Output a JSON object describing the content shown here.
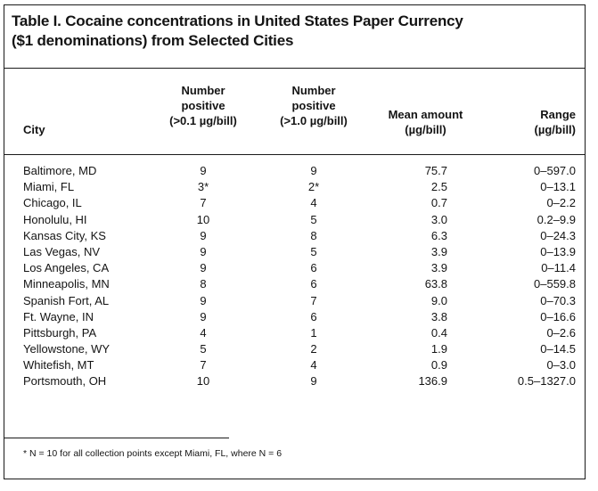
{
  "title": {
    "line1": "Table I. Cocaine concentrations in United States Paper Currency",
    "line2": "($1 denominations) from Selected Cities"
  },
  "headers": {
    "city": "City",
    "number_positive_01": [
      "Number",
      "positive",
      "(>0.1 µg/bill)"
    ],
    "number_positive_10": [
      "Number",
      "positive",
      "(>1.0 µg/bill)"
    ],
    "mean_amount": [
      "Mean amount",
      "(µg/bill)"
    ],
    "range": [
      "Range",
      "(µg/bill)"
    ]
  },
  "rows": [
    {
      "city": "Baltimore, MD",
      "n01": "9",
      "n10": "9",
      "mean": "75.7",
      "range": "0–597.0"
    },
    {
      "city": "Miami, FL",
      "n01": "3*",
      "n10": "2*",
      "mean": "2.5",
      "range": "0–13.1"
    },
    {
      "city": "Chicago, IL",
      "n01": "7",
      "n10": "4",
      "mean": "0.7",
      "range": "0–2.2"
    },
    {
      "city": "Honolulu, HI",
      "n01": "10",
      "n10": "5",
      "mean": "3.0",
      "range": "0.2–9.9"
    },
    {
      "city": "Kansas City, KS",
      "n01": "9",
      "n10": "8",
      "mean": "6.3",
      "range": "0–24.3"
    },
    {
      "city": "Las Vegas, NV",
      "n01": "9",
      "n10": "5",
      "mean": "3.9",
      "range": "0–13.9"
    },
    {
      "city": "Los Angeles, CA",
      "n01": "9",
      "n10": "6",
      "mean": "3.9",
      "range": "0–11.4"
    },
    {
      "city": "Minneapolis, MN",
      "n01": "8",
      "n10": "6",
      "mean": "63.8",
      "range": "0–559.8"
    },
    {
      "city": "Spanish Fort, AL",
      "n01": "9",
      "n10": "7",
      "mean": "9.0",
      "range": "0–70.3"
    },
    {
      "city": "Ft. Wayne, IN",
      "n01": "9",
      "n10": "6",
      "mean": "3.8",
      "range": "0–16.6"
    },
    {
      "city": "Pittsburgh, PA",
      "n01": "4",
      "n10": "1",
      "mean": "0.4",
      "range": "0–2.6"
    },
    {
      "city": "Yellowstone, WY",
      "n01": "5",
      "n10": "2",
      "mean": "1.9",
      "range": "0–14.5"
    },
    {
      "city": "Whitefish, MT",
      "n01": "7",
      "n10": "4",
      "mean": "0.9",
      "range": "0–3.0"
    },
    {
      "city": "Portsmouth, OH",
      "n01": "10",
      "n10": "9",
      "mean": "136.9",
      "range": "0.5–1327.0"
    }
  ],
  "footnote": "* N = 10 for all collection points except Miami, FL, where N = 6"
}
